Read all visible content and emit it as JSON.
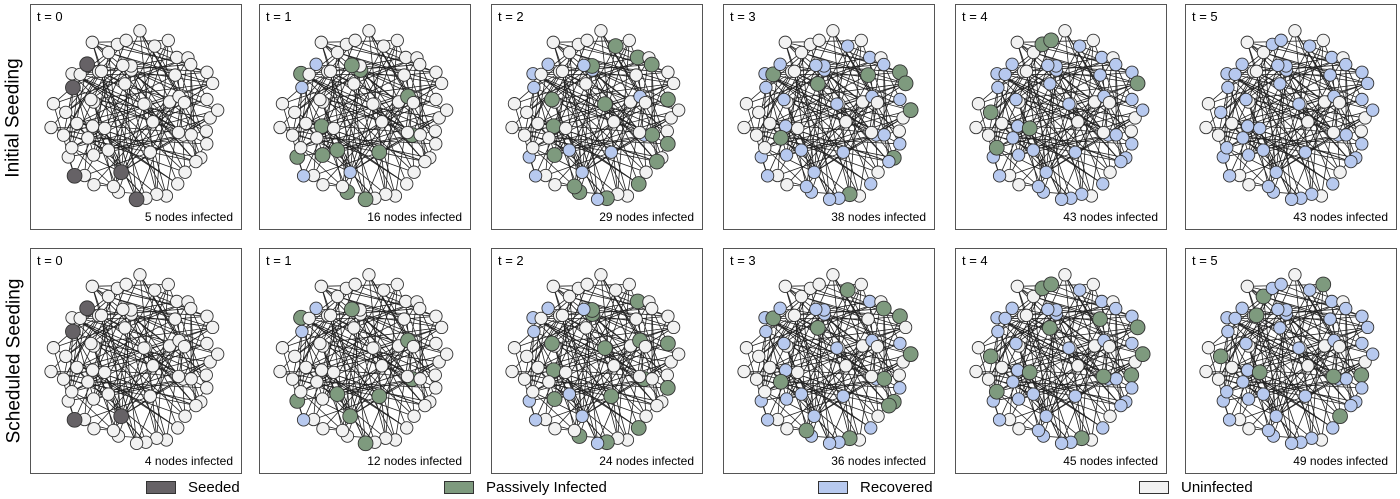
{
  "rows": [
    {
      "label": "Initial Seeding",
      "panels": [
        {
          "time_label": "t = 0",
          "count_label": "5 nodes infected",
          "infected": 5,
          "recovered": 0
        },
        {
          "time_label": "t = 1",
          "count_label": "16 nodes infected",
          "infected": 16,
          "recovered": 4
        },
        {
          "time_label": "t = 2",
          "count_label": "29 nodes infected",
          "infected": 29,
          "recovered": 13
        },
        {
          "time_label": "t = 3",
          "count_label": "38 nodes infected",
          "infected": 38,
          "recovered": 29
        },
        {
          "time_label": "t = 4",
          "count_label": "43 nodes infected",
          "infected": 43,
          "recovered": 37
        },
        {
          "time_label": "t = 5",
          "count_label": "43 nodes infected",
          "infected": 43,
          "recovered": 43
        }
      ]
    },
    {
      "label": "Scheduled Seeding",
      "panels": [
        {
          "time_label": "t = 0",
          "count_label": "4 nodes infected",
          "infected": 4,
          "recovered": 0
        },
        {
          "time_label": "t = 1",
          "count_label": "12 nodes infected",
          "infected": 12,
          "recovered": 3
        },
        {
          "time_label": "t = 2",
          "count_label": "24 nodes infected",
          "infected": 24,
          "recovered": 9
        },
        {
          "time_label": "t = 3",
          "count_label": "36 nodes infected",
          "infected": 36,
          "recovered": 24
        },
        {
          "time_label": "t = 4",
          "count_label": "45 nodes infected",
          "infected": 45,
          "recovered": 33
        },
        {
          "time_label": "t = 5",
          "count_label": "49 nodes infected",
          "infected": 49,
          "recovered": 41
        }
      ]
    }
  ],
  "legend": [
    {
      "label": "Seeded",
      "color": "#666266"
    },
    {
      "label": "Passively Infected",
      "color": "#7e9a7e"
    },
    {
      "label": "Recovered",
      "color": "#b7c9ef"
    },
    {
      "label": "Uninfected",
      "color": "#f2f2f2"
    }
  ],
  "colors": {
    "seeded": "#666266",
    "passive": "#7e9a7e",
    "recovered": "#b7c9ef",
    "uninfected": "#f2f2f2",
    "node_stroke": "#333333",
    "edge": "#222222"
  }
}
